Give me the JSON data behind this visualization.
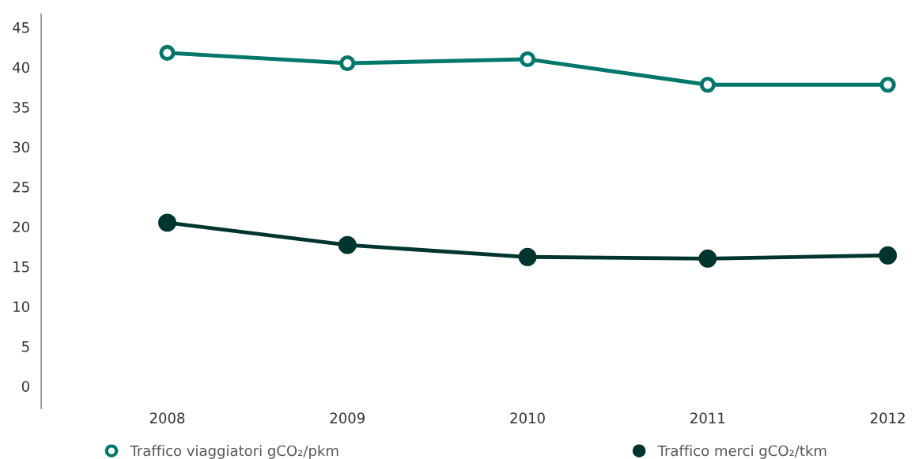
{
  "chart_data": {
    "type": "line",
    "categories": [
      "2008",
      "2009",
      "2010",
      "2011",
      "2012"
    ],
    "series": [
      {
        "name": "Traffico viaggiatori gCO₂/pkm",
        "color": "#00776b",
        "values": [
          41.8,
          40.5,
          41.0,
          37.8,
          37.8
        ]
      },
      {
        "name": "Traffico merci gCO₂/tkm",
        "color": "#00352f",
        "values": [
          20.5,
          17.7,
          16.2,
          16.0,
          16.4
        ]
      }
    ],
    "ylim": [
      -2.8,
      46.7
    ],
    "yticks": [
      0,
      5,
      10,
      15,
      20,
      25,
      30,
      35,
      40,
      45
    ],
    "grid": false,
    "legend": "bottom",
    "marker": "circle",
    "line_style": "solid"
  }
}
